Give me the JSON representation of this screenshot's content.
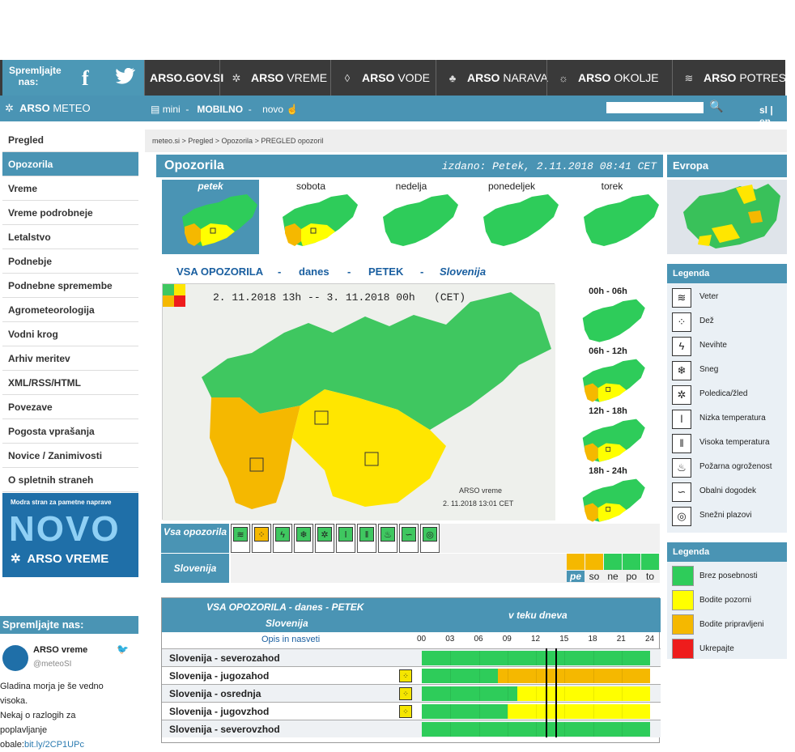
{
  "top": {
    "follow_label": "Spremljajte nas:",
    "nav": [
      {
        "bold": "ARSO.GOV.SI",
        "rest": "",
        "icon": ""
      },
      {
        "bold": "ARSO",
        "rest": "VREME",
        "icon": "✲"
      },
      {
        "bold": "ARSO",
        "rest": "VODE",
        "icon": "◊"
      },
      {
        "bold": "ARSO",
        "rest": "NARAVA",
        "icon": "♣"
      },
      {
        "bold": "ARSO",
        "rest": "OKOLJE",
        "icon": "☼"
      },
      {
        "bold": "ARSO",
        "rest": "POTRESI",
        "icon": "≋"
      }
    ],
    "site_logo_bold": "ARSO",
    "site_logo_rest": "METEO",
    "menu_mini": "mini",
    "menu_sep1": "-",
    "menu_mobilno": "MOBILNO",
    "menu_sep2": "-",
    "menu_novo": "novo",
    "search_placeholder": "",
    "lang": "sl  | en"
  },
  "sidebar": {
    "items": [
      "Pregled",
      "Opozorila",
      "Vreme",
      "Vreme podrobneje",
      "Letalstvo",
      "Podnebje",
      "Podnebne spremembe",
      "Agrometeorologija",
      "Vodni krog",
      "Arhiv meritev",
      "XML/RSS/HTML",
      "Povezave",
      "Pogosta vprašanja",
      "Novice / Zanimivosti",
      "O spletnih straneh"
    ],
    "active": 1
  },
  "promo": {
    "tagline": "Modra stran za pametne naprave",
    "big": "NOVO",
    "brand": "ARSO VREME"
  },
  "social": {
    "header": "Spremljajte nas:",
    "name": "ARSO vreme",
    "handle": "@meteoSI",
    "text": "Gladina morja je še vedno visoka.",
    "text2": "Nekaj o razlogih za",
    "text3": "poplavljanje",
    "text4_prefix": "obale:",
    "link": "bit.ly/2CP1UPc"
  },
  "breadcrumb": "meteo.si > Pregled > Opozorila > PREGLED opozoril",
  "header": {
    "title": "Opozorila",
    "issued": "izdano: Petek, 2.11.2018 08:41 CET",
    "europe": "Evropa"
  },
  "days": [
    "petek",
    "sobota",
    "nedelja",
    "ponedeljek",
    "torek"
  ],
  "vsa": {
    "title": "VSA OPOZORILA",
    "sep": "-",
    "when": "danes",
    "day": "PETEK",
    "region": "Slovenija"
  },
  "map": {
    "range_from": "2. 11.2018  13h",
    "dash": "--",
    "range_to": "3. 11.2018  00h",
    "tz": "(CET)",
    "credit": "ARSO vreme",
    "credit_date": "2. 11.2018  13:01 CET"
  },
  "slots": [
    "00h - 06h",
    "06h - 12h",
    "12h - 18h",
    "18h - 24h"
  ],
  "row_labels": {
    "vsa": "Vsa opozorila",
    "slo": "Slovenija"
  },
  "icons": [
    "wind-icon",
    "rain-icon",
    "thunder-icon",
    "snow-icon",
    "ice-icon",
    "low-temp-icon",
    "high-temp-icon",
    "fire-icon",
    "coast-icon",
    "avalanche-icon"
  ],
  "slo_days": [
    "pe",
    "so",
    "ne",
    "po",
    "to"
  ],
  "slo_day_levels": [
    "orange",
    "orange",
    "green",
    "green",
    "green"
  ],
  "legend1": {
    "title": "Legenda",
    "items": [
      {
        "label": "Veter",
        "glyph": "≋"
      },
      {
        "label": "Dež",
        "glyph": "⁘"
      },
      {
        "label": "Nevihte",
        "glyph": "ϟ"
      },
      {
        "label": "Sneg",
        "glyph": "❄"
      },
      {
        "label": "Poledica/žled",
        "glyph": "✲"
      },
      {
        "label": "Nizka temperatura",
        "glyph": "ǀ"
      },
      {
        "label": "Visoka temperatura",
        "glyph": "ǁ"
      },
      {
        "label": "Požarna ogroženost",
        "glyph": "♨"
      },
      {
        "label": "Obalni dogodek",
        "glyph": "∽"
      },
      {
        "label": "Snežni plazovi",
        "glyph": "◎"
      }
    ]
  },
  "legend2": {
    "title": "Legenda",
    "items": [
      {
        "label": "Brez posebnosti",
        "color": "#2ecc5a"
      },
      {
        "label": "Bodite pozorni",
        "color": "#ffff00"
      },
      {
        "label": "Bodite pripravljeni",
        "color": "#f5b800"
      },
      {
        "label": "Ukrepajte",
        "color": "#ee1c1c"
      }
    ]
  },
  "table": {
    "title": "VSA OPOZORILA - danes - PETEK",
    "subtitle": "Slovenija",
    "period": "v teku dneva",
    "opis": "Opis in nasveti",
    "hours": [
      "00",
      "03",
      "06",
      "09",
      "12",
      "15",
      "18",
      "21",
      "24"
    ],
    "rows": [
      {
        "name": "Slovenija - severozahod",
        "change_hour": null,
        "level": "none",
        "icon": false
      },
      {
        "name": "Slovenija - jugozahod",
        "change_hour": 8,
        "level": "orange",
        "icon": true
      },
      {
        "name": "Slovenija - osrednja",
        "change_hour": 10,
        "level": "yellow",
        "icon": true
      },
      {
        "name": "Slovenija - jugovzhod",
        "change_hour": 9,
        "level": "yellow",
        "icon": true
      },
      {
        "name": "Slovenija - severovzhod",
        "change_hour": null,
        "level": "none",
        "icon": false
      }
    ],
    "now_hours": [
      13,
      14
    ]
  },
  "colors": {
    "accent": "#4a94b4",
    "green": "#2ecc5a",
    "yellow": "#ffff00",
    "orange": "#f5b800",
    "red": "#ee1c1c"
  }
}
